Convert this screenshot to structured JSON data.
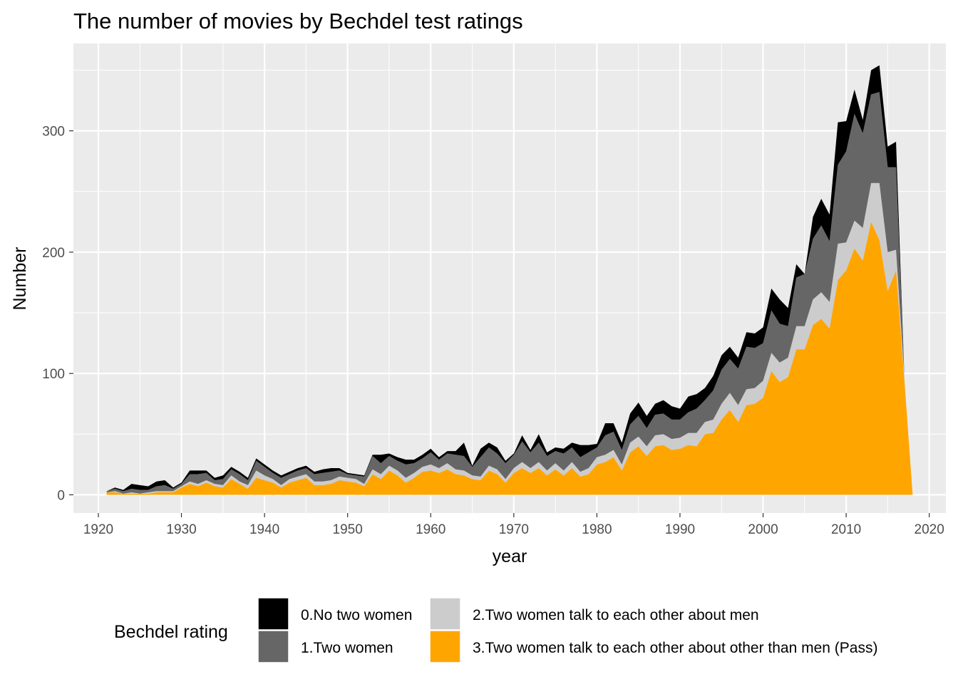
{
  "chart_data": {
    "type": "area",
    "stacked": true,
    "title": "The number of movies by Bechdel test ratings",
    "xlabel": "year",
    "ylabel": "Number",
    "xlim": [
      1917,
      2022
    ],
    "ylim": [
      -15,
      372
    ],
    "x_ticks": [
      1920,
      1930,
      1940,
      1950,
      1960,
      1970,
      1980,
      1990,
      2000,
      2010,
      2020
    ],
    "y_ticks": [
      0,
      100,
      200,
      300
    ],
    "x_tick_labels": [
      "1920",
      "1930",
      "1940",
      "1950",
      "1960",
      "1970",
      "1980",
      "1990",
      "2000",
      "2010",
      "2020"
    ],
    "y_tick_labels": [
      "0",
      "100",
      "200",
      "300"
    ],
    "grid": true,
    "panel_background": "#ebebeb",
    "legend": {
      "title": "Bechdel rating",
      "placement": "bottom",
      "items": [
        {
          "label": "0.No two women",
          "color": "#000000"
        },
        {
          "label": "1.Two women",
          "color": "#666666"
        },
        {
          "label": "2.Two women talk to each other about men",
          "color": "#cccccc"
        },
        {
          "label": "3.Two women talk to each other about other than men (Pass)",
          "color": "#ffa500"
        }
      ]
    },
    "x": [
      1921,
      1922,
      1923,
      1924,
      1925,
      1926,
      1927,
      1928,
      1929,
      1930,
      1931,
      1932,
      1933,
      1934,
      1935,
      1936,
      1937,
      1938,
      1939,
      1940,
      1941,
      1942,
      1943,
      1944,
      1945,
      1946,
      1947,
      1948,
      1949,
      1950,
      1951,
      1952,
      1953,
      1954,
      1955,
      1956,
      1957,
      1958,
      1959,
      1960,
      1961,
      1962,
      1963,
      1964,
      1965,
      1966,
      1967,
      1968,
      1969,
      1970,
      1971,
      1972,
      1973,
      1974,
      1975,
      1976,
      1977,
      1978,
      1979,
      1980,
      1981,
      1982,
      1983,
      1984,
      1985,
      1986,
      1987,
      1988,
      1989,
      1990,
      1991,
      1992,
      1993,
      1994,
      1995,
      1996,
      1997,
      1998,
      1999,
      2000,
      2001,
      2002,
      2003,
      2004,
      2005,
      2006,
      2007,
      2008,
      2009,
      2010,
      2011,
      2012,
      2013,
      2014,
      2015,
      2016,
      2017,
      2018
    ],
    "series": [
      {
        "name": "3.Two women talk to each other about other than men (Pass)",
        "color": "#ffa500",
        "values": [
          2,
          2,
          1,
          1,
          1,
          1,
          2,
          2,
          2,
          6,
          9,
          7,
          10,
          7,
          6,
          13,
          9,
          5,
          14,
          12,
          10,
          6,
          10,
          12,
          14,
          8,
          8,
          9,
          12,
          11,
          10,
          7,
          17,
          13,
          20,
          16,
          10,
          14,
          19,
          20,
          18,
          21,
          17,
          16,
          13,
          12,
          20,
          17,
          10,
          18,
          22,
          18,
          22,
          16,
          21,
          16,
          22,
          15,
          17,
          25,
          27,
          31,
          20,
          35,
          40,
          32,
          40,
          41,
          37,
          38,
          41,
          40,
          50,
          51,
          62,
          70,
          60,
          74,
          75,
          80,
          102,
          93,
          97,
          120,
          120,
          140,
          145,
          137,
          177,
          185,
          203,
          193,
          225,
          210,
          168,
          185,
          95,
          0
        ]
      },
      {
        "name": "2.Two women talk to each other about men",
        "color": "#cccccc",
        "values": [
          0,
          1,
          0,
          1,
          0,
          1,
          1,
          1,
          1,
          1,
          2,
          2,
          2,
          2,
          2,
          3,
          2,
          3,
          6,
          4,
          3,
          2,
          3,
          3,
          3,
          3,
          3,
          3,
          3,
          3,
          3,
          2,
          4,
          4,
          4,
          4,
          4,
          4,
          4,
          5,
          4,
          5,
          4,
          4,
          3,
          3,
          4,
          4,
          3,
          4,
          5,
          4,
          5,
          4,
          5,
          4,
          5,
          4,
          5,
          6,
          6,
          6,
          5,
          8,
          8,
          8,
          9,
          9,
          9,
          9,
          10,
          11,
          10,
          11,
          13,
          14,
          14,
          13,
          13,
          14,
          15,
          16,
          16,
          19,
          19,
          21,
          22,
          22,
          30,
          23,
          23,
          27,
          32,
          47,
          32,
          17,
          3,
          0
        ]
      },
      {
        "name": "1.Two women",
        "color": "#666666",
        "values": [
          1,
          2,
          2,
          3,
          3,
          2,
          4,
          5,
          2,
          2,
          6,
          8,
          6,
          3,
          5,
          5,
          6,
          4,
          8,
          7,
          5,
          6,
          4,
          5,
          5,
          6,
          7,
          7,
          5,
          3,
          3,
          6,
          11,
          9,
          8,
          8,
          11,
          8,
          7,
          10,
          7,
          8,
          12,
          12,
          7,
          16,
          15,
          13,
          13,
          11,
          17,
          13,
          16,
          12,
          10,
          14,
          12,
          12,
          13,
          8,
          16,
          15,
          12,
          15,
          17,
          15,
          17,
          17,
          16,
          15,
          17,
          20,
          18,
          24,
          28,
          28,
          30,
          35,
          33,
          31,
          35,
          32,
          26,
          40,
          43,
          50,
          55,
          50,
          65,
          75,
          88,
          78,
          73,
          75,
          70,
          68,
          0,
          0
        ]
      },
      {
        "name": "0.No two women",
        "color": "#000000",
        "values": [
          0,
          1,
          1,
          4,
          4,
          3,
          4,
          4,
          1,
          1,
          3,
          3,
          2,
          2,
          3,
          2,
          2,
          2,
          2,
          2,
          2,
          2,
          2,
          2,
          2,
          2,
          3,
          3,
          2,
          1,
          1,
          1,
          1,
          7,
          2,
          3,
          4,
          3,
          3,
          3,
          2,
          2,
          3,
          11,
          1,
          7,
          4,
          5,
          2,
          1,
          5,
          2,
          7,
          3,
          3,
          4,
          4,
          10,
          6,
          3,
          10,
          7,
          6,
          9,
          11,
          10,
          9,
          11,
          11,
          9,
          13,
          12,
          10,
          12,
          12,
          10,
          9,
          12,
          12,
          13,
          18,
          20,
          15,
          11,
          0,
          18,
          22,
          22,
          35,
          25,
          20,
          11,
          20,
          22,
          17,
          21,
          0,
          0
        ]
      }
    ]
  }
}
